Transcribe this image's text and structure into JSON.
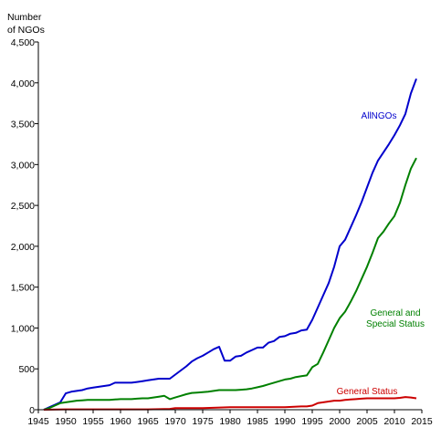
{
  "chart_data": {
    "type": "line",
    "ylabel_line1": "Number",
    "ylabel_line2": "of NGOs",
    "xlim": [
      1945,
      2015
    ],
    "ylim": [
      0,
      4500
    ],
    "x_ticks": [
      1945,
      1950,
      1955,
      1960,
      1965,
      1970,
      1975,
      1980,
      1985,
      1990,
      1995,
      2000,
      2005,
      2010,
      2015
    ],
    "y_ticks": [
      0,
      500,
      1000,
      1500,
      2000,
      2500,
      3000,
      3500,
      4000,
      4500
    ],
    "y_tick_labels": [
      "0",
      "500",
      "1,000",
      "1,500",
      "2,000",
      "2,500",
      "3,000",
      "3,500",
      "4,000",
      "4,500"
    ],
    "grid": false,
    "series": [
      {
        "name": "AllNGOs",
        "color": "#0000cc",
        "label_lines": [
          "AllNGOs"
        ],
        "x": [
          1946,
          1947,
          1948,
          1949,
          1950,
          1951,
          1952,
          1953,
          1954,
          1955,
          1956,
          1957,
          1958,
          1959,
          1960,
          1961,
          1962,
          1963,
          1964,
          1965,
          1966,
          1967,
          1968,
          1969,
          1970,
          1971,
          1972,
          1973,
          1974,
          1975,
          1976,
          1977,
          1978,
          1979,
          1980,
          1981,
          1982,
          1983,
          1984,
          1985,
          1986,
          1987,
          1988,
          1989,
          1990,
          1991,
          1992,
          1993,
          1994,
          1995,
          1996,
          1997,
          1998,
          1999,
          2000,
          2001,
          2002,
          2003,
          2004,
          2005,
          2006,
          2007,
          2008,
          2009,
          2010,
          2011,
          2012,
          2013,
          2014
        ],
        "y": [
          0,
          30,
          60,
          90,
          200,
          220,
          230,
          240,
          260,
          270,
          280,
          290,
          300,
          330,
          330,
          330,
          330,
          340,
          350,
          360,
          370,
          380,
          380,
          380,
          430,
          480,
          530,
          590,
          630,
          660,
          700,
          740,
          770,
          600,
          600,
          650,
          660,
          700,
          730,
          760,
          760,
          820,
          840,
          890,
          900,
          930,
          940,
          970,
          980,
          1100,
          1250,
          1400,
          1550,
          1750,
          2000,
          2080,
          2230,
          2380,
          2540,
          2720,
          2900,
          3050,
          3150,
          3250,
          3360,
          3480,
          3620,
          3870,
          4050
        ]
      },
      {
        "name": "General and Special Status",
        "color": "#008000",
        "label_lines": [
          "General and",
          "Special Status"
        ],
        "x": [
          1946,
          1947,
          1948,
          1949,
          1950,
          1951,
          1952,
          1953,
          1954,
          1955,
          1956,
          1957,
          1958,
          1959,
          1960,
          1961,
          1962,
          1963,
          1964,
          1965,
          1966,
          1967,
          1968,
          1969,
          1970,
          1971,
          1972,
          1973,
          1974,
          1975,
          1976,
          1977,
          1978,
          1979,
          1980,
          1981,
          1982,
          1983,
          1984,
          1985,
          1986,
          1987,
          1988,
          1989,
          1990,
          1991,
          1992,
          1993,
          1994,
          1995,
          1996,
          1997,
          1998,
          1999,
          2000,
          2001,
          2002,
          2003,
          2004,
          2005,
          2006,
          2007,
          2008,
          2009,
          2010,
          2011,
          2012,
          2013,
          2014
        ],
        "y": [
          0,
          20,
          50,
          80,
          90,
          100,
          110,
          115,
          120,
          120,
          120,
          120,
          120,
          125,
          130,
          130,
          130,
          135,
          140,
          140,
          150,
          160,
          170,
          130,
          150,
          170,
          190,
          205,
          210,
          215,
          220,
          230,
          240,
          240,
          240,
          240,
          245,
          250,
          260,
          275,
          290,
          310,
          330,
          350,
          370,
          380,
          400,
          410,
          420,
          520,
          560,
          700,
          850,
          1000,
          1120,
          1200,
          1320,
          1450,
          1600,
          1750,
          1920,
          2100,
          2180,
          2280,
          2370,
          2530,
          2750,
          2950,
          3080
        ]
      },
      {
        "name": "General Status",
        "color": "#cc0000",
        "label_lines": [
          "General Status"
        ],
        "x": [
          1946,
          1950,
          1955,
          1960,
          1965,
          1969,
          1970,
          1975,
          1980,
          1985,
          1990,
          1993,
          1994,
          1995,
          1996,
          1997,
          1998,
          1999,
          2000,
          2001,
          2002,
          2003,
          2004,
          2005,
          2006,
          2007,
          2008,
          2009,
          2010,
          2011,
          2012,
          2013,
          2014
        ],
        "y": [
          0,
          5,
          5,
          5,
          5,
          10,
          20,
          20,
          30,
          30,
          30,
          40,
          40,
          50,
          80,
          90,
          100,
          110,
          110,
          120,
          125,
          130,
          135,
          140,
          140,
          140,
          140,
          140,
          140,
          145,
          155,
          150,
          140
        ]
      }
    ]
  }
}
